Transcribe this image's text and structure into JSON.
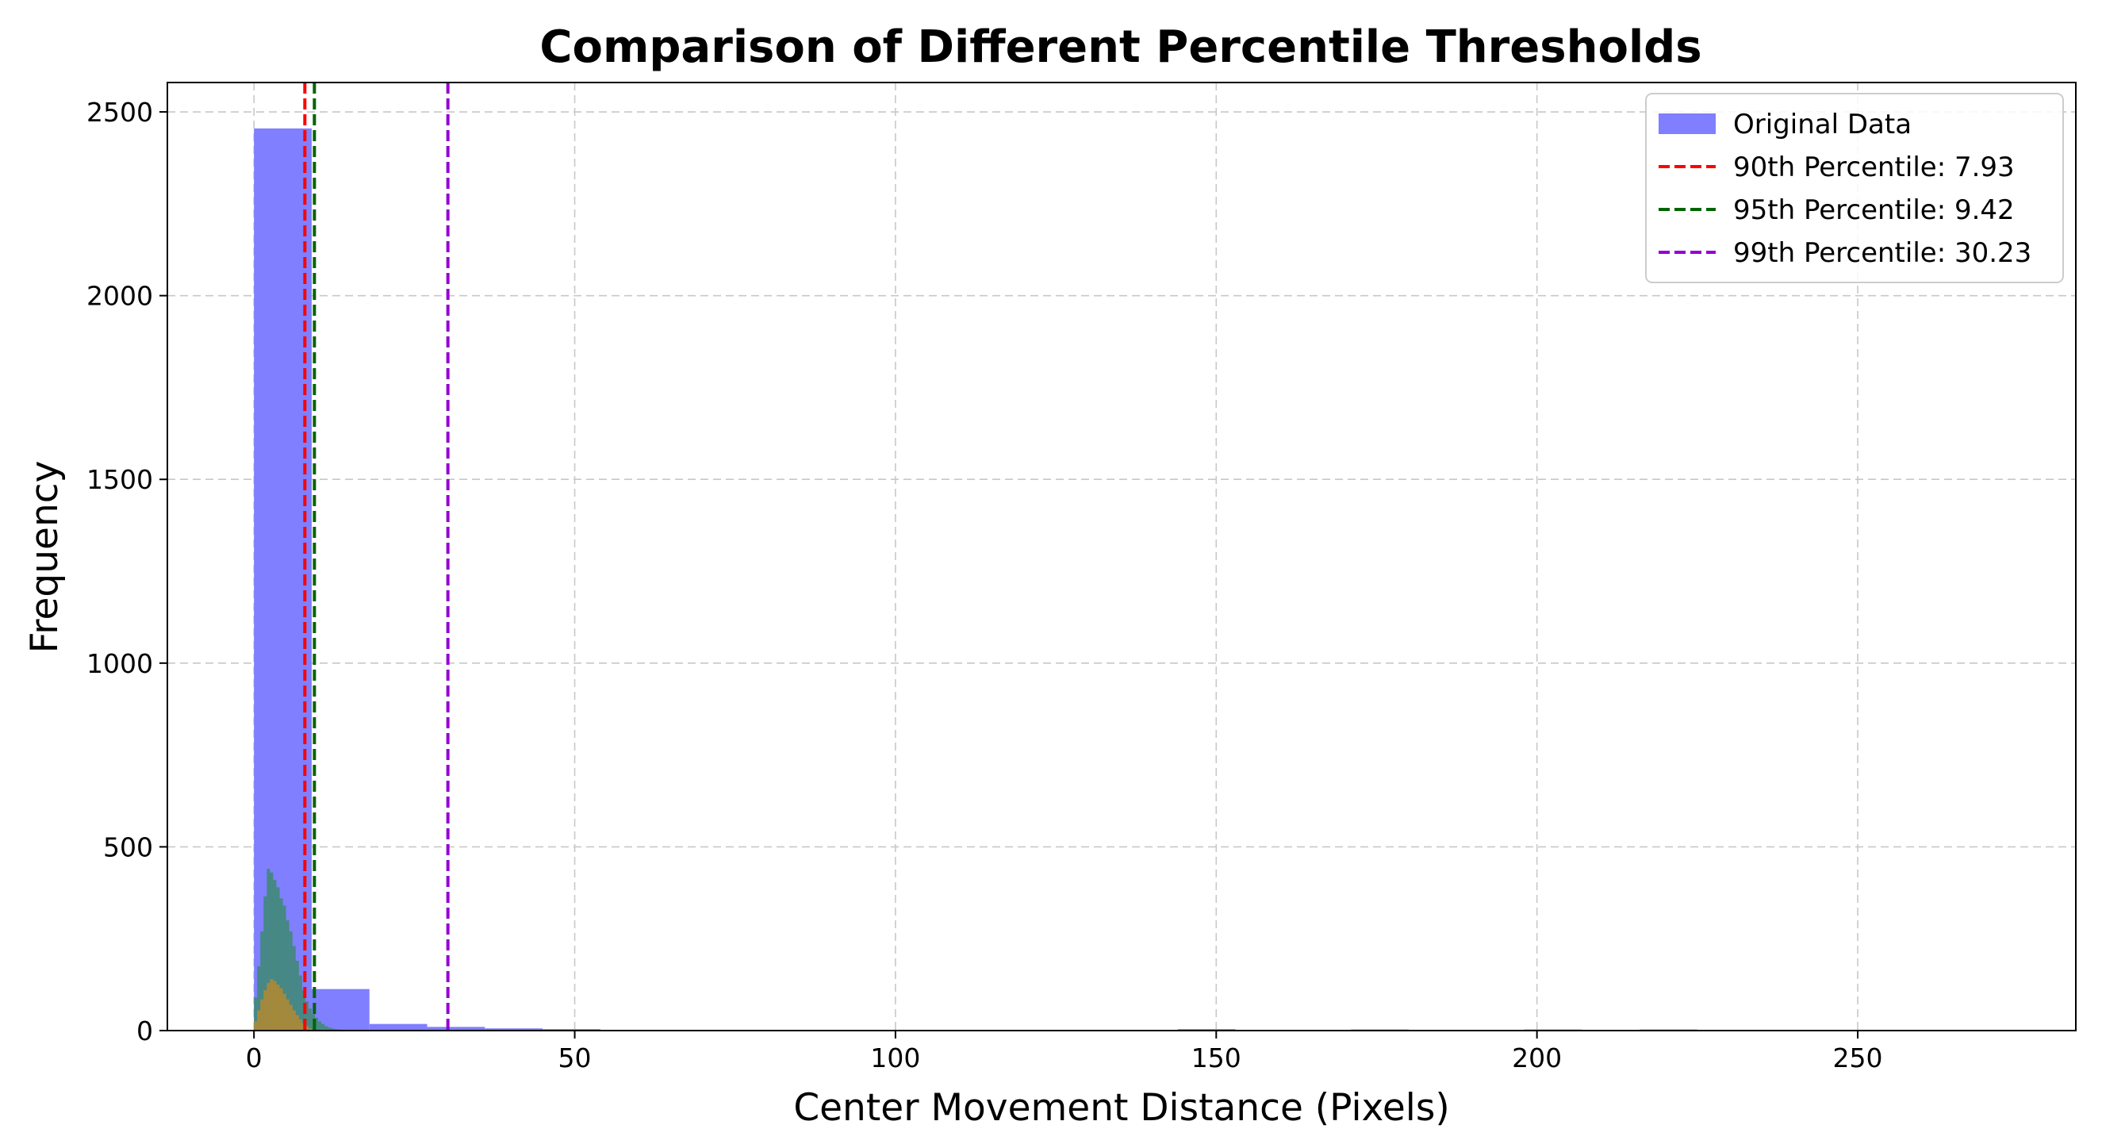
{
  "chart_data": {
    "type": "bar",
    "title": "Comparison of Different Percentile Thresholds",
    "xlabel": "Center Movement Distance (Pixels)",
    "ylabel": "Frequency",
    "xlim": [
      -13.5,
      284
    ],
    "ylim": [
      0,
      2580
    ],
    "xticks": [
      0,
      50,
      100,
      150,
      200,
      250
    ],
    "yticks": [
      0,
      500,
      1000,
      1500,
      2000,
      2500
    ],
    "grid": true,
    "legend_position": "top-right",
    "series": [
      {
        "name": "Original Data",
        "kind": "histogram",
        "color": "#7f7fff",
        "bins": [
          {
            "x0": 0,
            "x1": 9,
            "count": 2455
          },
          {
            "x0": 9,
            "x1": 18,
            "count": 113
          },
          {
            "x0": 18,
            "x1": 27,
            "count": 18
          },
          {
            "x0": 27,
            "x1": 36,
            "count": 10
          },
          {
            "x0": 36,
            "x1": 45,
            "count": 6
          },
          {
            "x0": 45,
            "x1": 54,
            "count": 4
          },
          {
            "x0": 144,
            "x1": 153,
            "count": 4
          },
          {
            "x0": 171,
            "x1": 180,
            "count": 3
          },
          {
            "x0": 198,
            "x1": 207,
            "count": 3
          },
          {
            "x0": 216,
            "x1": 225,
            "count": 3
          }
        ]
      },
      {
        "kind": "histogram",
        "color": "#3c8a6e",
        "bins": [
          {
            "x0": 0.0,
            "x1": 0.5,
            "count": 90
          },
          {
            "x0": 0.5,
            "x1": 1.0,
            "count": 175
          },
          {
            "x0": 1.0,
            "x1": 1.5,
            "count": 270
          },
          {
            "x0": 1.5,
            "x1": 2.0,
            "count": 365
          },
          {
            "x0": 2.0,
            "x1": 2.5,
            "count": 440
          },
          {
            "x0": 2.5,
            "x1": 3.0,
            "count": 430
          },
          {
            "x0": 3.0,
            "x1": 3.5,
            "count": 410
          },
          {
            "x0": 3.5,
            "x1": 4.0,
            "count": 390
          },
          {
            "x0": 4.0,
            "x1": 4.5,
            "count": 360
          },
          {
            "x0": 4.5,
            "x1": 5.0,
            "count": 340
          },
          {
            "x0": 5.0,
            "x1": 5.5,
            "count": 300
          },
          {
            "x0": 5.5,
            "x1": 6.0,
            "count": 270
          },
          {
            "x0": 6.0,
            "x1": 6.5,
            "count": 230
          },
          {
            "x0": 6.5,
            "x1": 7.0,
            "count": 190
          },
          {
            "x0": 7.0,
            "x1": 7.5,
            "count": 150
          },
          {
            "x0": 7.5,
            "x1": 8.0,
            "count": 110
          },
          {
            "x0": 8.0,
            "x1": 8.5,
            "count": 80
          },
          {
            "x0": 8.5,
            "x1": 9.0,
            "count": 60
          },
          {
            "x0": 9.0,
            "x1": 9.5,
            "count": 45
          },
          {
            "x0": 9.5,
            "x1": 10.0,
            "count": 35
          },
          {
            "x0": 10.0,
            "x1": 10.5,
            "count": 25
          },
          {
            "x0": 10.5,
            "x1": 11.0,
            "count": 18
          },
          {
            "x0": 11.0,
            "x1": 11.5,
            "count": 12
          },
          {
            "x0": 11.5,
            "x1": 12.0,
            "count": 8
          },
          {
            "x0": 12.0,
            "x1": 12.5,
            "count": 6
          },
          {
            "x0": 12.5,
            "x1": 13.0,
            "count": 4
          },
          {
            "x0": 13.0,
            "x1": 13.5,
            "count": 3
          }
        ]
      },
      {
        "kind": "histogram",
        "color": "#b58a2e",
        "bins": [
          {
            "x0": 0.0,
            "x1": 0.5,
            "count": 25
          },
          {
            "x0": 0.5,
            "x1": 1.0,
            "count": 55
          },
          {
            "x0": 1.0,
            "x1": 1.5,
            "count": 85
          },
          {
            "x0": 1.5,
            "x1": 2.0,
            "count": 110
          },
          {
            "x0": 2.0,
            "x1": 2.5,
            "count": 130
          },
          {
            "x0": 2.5,
            "x1": 3.0,
            "count": 140
          },
          {
            "x0": 3.0,
            "x1": 3.5,
            "count": 135
          },
          {
            "x0": 3.5,
            "x1": 4.0,
            "count": 125
          },
          {
            "x0": 4.0,
            "x1": 4.5,
            "count": 115
          },
          {
            "x0": 4.5,
            "x1": 5.0,
            "count": 100
          },
          {
            "x0": 5.0,
            "x1": 5.5,
            "count": 85
          },
          {
            "x0": 5.5,
            "x1": 6.0,
            "count": 70
          },
          {
            "x0": 6.0,
            "x1": 6.5,
            "count": 55
          },
          {
            "x0": 6.5,
            "x1": 7.0,
            "count": 42
          },
          {
            "x0": 7.0,
            "x1": 7.5,
            "count": 30
          },
          {
            "x0": 7.5,
            "x1": 8.0,
            "count": 20
          },
          {
            "x0": 8.0,
            "x1": 8.5,
            "count": 12
          },
          {
            "x0": 8.5,
            "x1": 9.0,
            "count": 6
          }
        ]
      }
    ],
    "threshold_lines": [
      {
        "name": "90th Percentile: 7.93",
        "x": 7.93,
        "color": "#ff0000",
        "style": "dashed"
      },
      {
        "name": "95th Percentile: 9.42",
        "x": 9.42,
        "color": "#006400",
        "style": "dashed"
      },
      {
        "name": "99th Percentile: 30.23",
        "x": 30.23,
        "color": "#9400d3",
        "style": "dashed"
      }
    ]
  }
}
